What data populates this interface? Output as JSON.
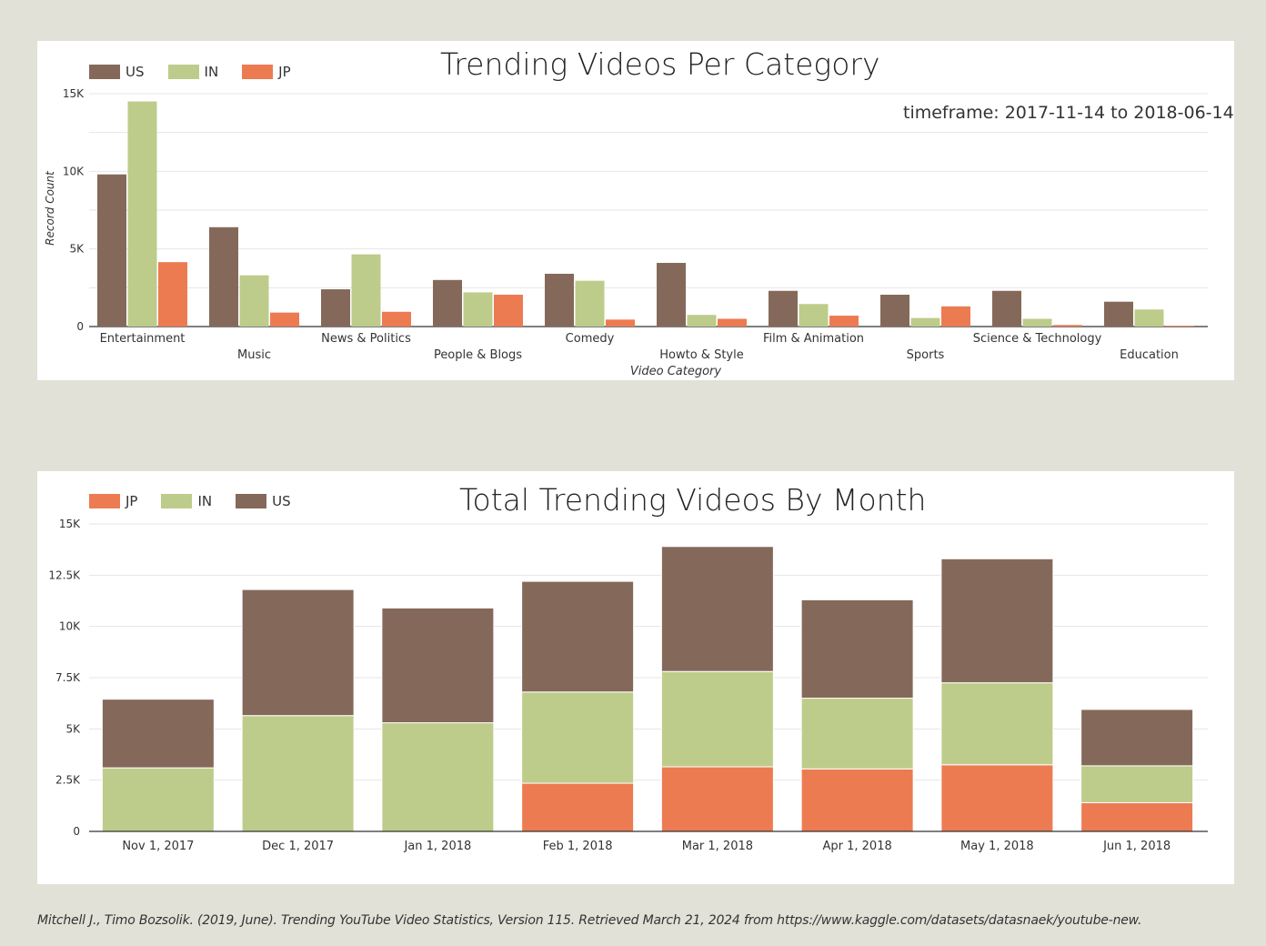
{
  "colors": {
    "US": "#84695a",
    "IN": "#bdcc8a",
    "JP": "#ed7b52"
  },
  "citation": "Mitchell J., Timo Bozsolik. (2019, June). Trending YouTube Video Statistics, Version 115. Retrieved March 21, 2024 from https://www.kaggle.com/datasets/datasnaek/youtube-new.",
  "chart_data": [
    {
      "type": "bar",
      "title": "Trending Videos Per Category",
      "annotation": "timeframe: 2017-11-14 to 2018-06-14",
      "xlabel": "Video Category",
      "ylabel": "Record Count",
      "ylim": [
        0,
        15000
      ],
      "yticks": [
        0,
        5000,
        10000,
        15000
      ],
      "ytick_labels": [
        "0",
        "5K",
        "10K",
        "15K"
      ],
      "grid": true,
      "legend_position": "top-left",
      "categories": [
        "Entertainment",
        "Music",
        "News & Politics",
        "People & Blogs",
        "Comedy",
        "Howto & Style",
        "Film & Animation",
        "Sports",
        "Science & Technology",
        "Education"
      ],
      "series": [
        {
          "name": "US",
          "color": "#84695a",
          "values": [
            9800,
            6400,
            2400,
            3000,
            3400,
            4100,
            2300,
            2050,
            2300,
            1600
          ]
        },
        {
          "name": "IN",
          "color": "#bdcc8a",
          "values": [
            14500,
            3300,
            4650,
            2200,
            2950,
            750,
            1450,
            550,
            500,
            1100
          ]
        },
        {
          "name": "JP",
          "color": "#ed7b52",
          "values": [
            4150,
            900,
            950,
            2050,
            450,
            500,
            700,
            1300,
            100,
            50
          ]
        }
      ]
    },
    {
      "type": "bar",
      "stacked": true,
      "title": "Total Trending Videos By Month",
      "xlabel": "",
      "ylabel": "",
      "ylim": [
        0,
        15000
      ],
      "yticks": [
        0,
        2500,
        5000,
        7500,
        10000,
        12500,
        15000
      ],
      "ytick_labels": [
        "0",
        "2.5K",
        "5K",
        "7.5K",
        "10K",
        "12.5K",
        "15K"
      ],
      "grid": true,
      "legend_position": "top-left",
      "categories": [
        "Nov 1, 2017",
        "Dec 1, 2017",
        "Jan 1, 2018",
        "Feb 1, 2018",
        "Mar 1, 2018",
        "Apr 1, 2018",
        "May 1, 2018",
        "Jun 1, 2018"
      ],
      "series": [
        {
          "name": "JP",
          "color": "#ed7b52",
          "values": [
            0,
            0,
            0,
            2350,
            3150,
            3050,
            3250,
            1400
          ]
        },
        {
          "name": "IN",
          "color": "#bdcc8a",
          "values": [
            3100,
            5650,
            5300,
            4450,
            4650,
            3450,
            4000,
            1800
          ]
        },
        {
          "name": "US",
          "color": "#84695a",
          "values": [
            3350,
            6150,
            5600,
            5400,
            6100,
            4800,
            6050,
            2750
          ]
        }
      ]
    }
  ]
}
